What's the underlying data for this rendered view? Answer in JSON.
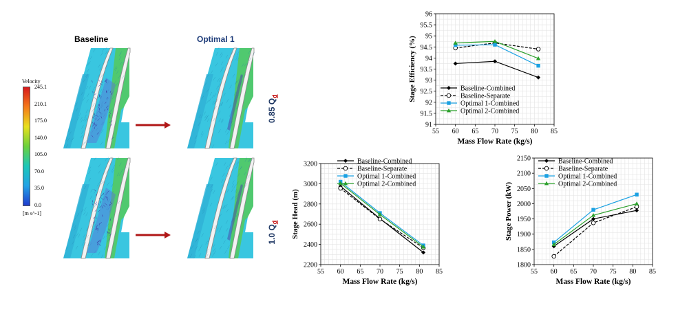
{
  "velocity_fields": {
    "columns": [
      "Baseline",
      "Optimal 1"
    ],
    "rows": [
      {
        "label": "0.85 Q",
        "subscript": "d"
      },
      {
        "label": "1.0 Q",
        "subscript": "d"
      }
    ],
    "colorbar": {
      "title": "Velocity",
      "ticks": [
        "245.1",
        "210.1",
        "175.0",
        "140.0",
        "105.0",
        "70.0",
        "35.0",
        "0.0"
      ],
      "unit": "[m s^-1]",
      "colors": [
        "#d7191c",
        "#f57a1a",
        "#e8e01c",
        "#6bd13c",
        "#1cc7b8",
        "#22a3e6",
        "#1f3ccf"
      ]
    },
    "arrow_color": "#b01717"
  },
  "chart_data": [
    {
      "type": "line",
      "xlabel": "Mass Flow Rate (kg/s)",
      "ylabel": "Stage Efficiency (%)",
      "xlim": [
        55,
        85
      ],
      "ylim": [
        91,
        96
      ],
      "xticks": [
        "55",
        "60",
        "65",
        "70",
        "75",
        "80",
        "85"
      ],
      "yticks": [
        "91",
        "91.5",
        "92",
        "92.5",
        "93",
        "93.5",
        "94",
        "94.5",
        "95",
        "95.5",
        "96"
      ],
      "x": [
        60,
        70,
        81
      ],
      "legend_position": "bottom-left",
      "grid": true,
      "series": [
        {
          "name": "Baseline-Combined",
          "values": [
            93.75,
            93.85,
            93.12
          ],
          "color": "#000000",
          "marker": "diamond",
          "dash": false
        },
        {
          "name": "Baseline-Separate",
          "values": [
            94.45,
            94.68,
            94.4
          ],
          "color": "#000000",
          "marker": "open-circle",
          "dash": true
        },
        {
          "name": "Optimal 1-Combined",
          "values": [
            94.58,
            94.6,
            93.65
          ],
          "color": "#1ba1e2",
          "marker": "square",
          "dash": false
        },
        {
          "name": "Optimal 2-Combined",
          "values": [
            94.68,
            94.75,
            93.98
          ],
          "color": "#2ca02c",
          "marker": "triangle",
          "dash": false
        }
      ]
    },
    {
      "type": "line",
      "xlabel": "Mass Flow Rate (kg/s)",
      "ylabel": "Stage Head (m)",
      "xlim": [
        55,
        85
      ],
      "ylim": [
        2200,
        3200
      ],
      "xticks": [
        "55",
        "60",
        "65",
        "70",
        "75",
        "80",
        "85"
      ],
      "yticks": [
        "2200",
        "2400",
        "2600",
        "2800",
        "3000",
        "3200"
      ],
      "x": [
        60,
        70,
        81
      ],
      "legend_position": "top-right",
      "grid": true,
      "series": [
        {
          "name": "Baseline-Combined",
          "values": [
            2975,
            2655,
            2320
          ],
          "color": "#000000",
          "marker": "diamond",
          "dash": false
        },
        {
          "name": "Baseline-Separate",
          "values": [
            2955,
            2650,
            2365
          ],
          "color": "#000000",
          "marker": "open-circle",
          "dash": true
        },
        {
          "name": "Optimal 1-Combined",
          "values": [
            3020,
            2710,
            2390
          ],
          "color": "#1ba1e2",
          "marker": "square",
          "dash": false
        },
        {
          "name": "Optimal 2-Combined",
          "values": [
            3005,
            2695,
            2375
          ],
          "color": "#2ca02c",
          "marker": "triangle",
          "dash": false
        }
      ]
    },
    {
      "type": "line",
      "xlabel": "Mass Flow Rate (kg/s)",
      "ylabel": "Stage Power (kW)",
      "xlim": [
        55,
        85
      ],
      "ylim": [
        1800,
        2150
      ],
      "xticks": [
        "55",
        "60",
        "65",
        "70",
        "75",
        "80",
        "85"
      ],
      "yticks": [
        "1800",
        "1850",
        "1900",
        "1950",
        "2000",
        "2050",
        "2100",
        "2150"
      ],
      "x": [
        60,
        70,
        81
      ],
      "legend_position": "top-left",
      "grid": true,
      "series": [
        {
          "name": "Baseline-Combined",
          "values": [
            1860,
            1950,
            1978
          ],
          "color": "#000000",
          "marker": "diamond",
          "dash": false
        },
        {
          "name": "Baseline-Separate",
          "values": [
            1827,
            1937,
            1990
          ],
          "color": "#000000",
          "marker": "open-circle",
          "dash": true
        },
        {
          "name": "Optimal 1-Combined",
          "values": [
            1873,
            1980,
            2030
          ],
          "color": "#1ba1e2",
          "marker": "square",
          "dash": false
        },
        {
          "name": "Optimal 2-Combined",
          "values": [
            1866,
            1962,
            2000
          ],
          "color": "#2ca02c",
          "marker": "triangle",
          "dash": false
        }
      ]
    }
  ]
}
